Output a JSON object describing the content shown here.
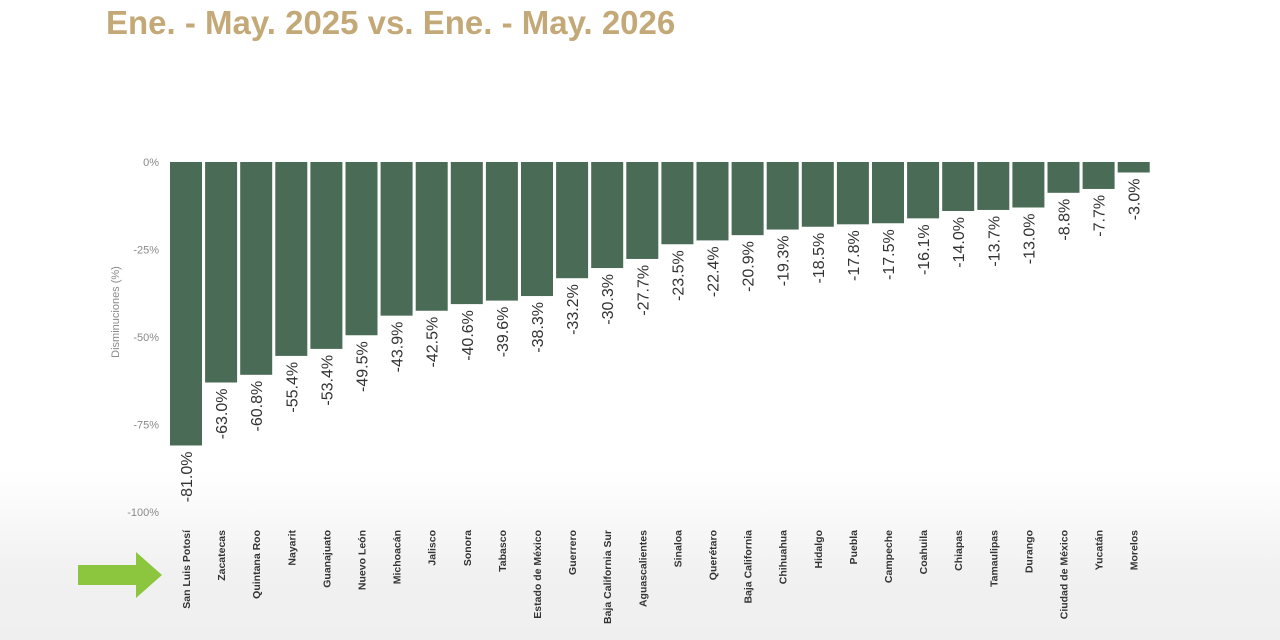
{
  "title": "Ene. - May. 2025 vs. Ene. - May. 2026",
  "chart_data": {
    "type": "bar",
    "ylabel": "Disminuciones (%)",
    "ylim": [
      -100,
      0
    ],
    "yticks": [
      0,
      -25,
      -50,
      -75,
      -100
    ],
    "ytick_labels": [
      "0%",
      "-25%",
      "-50%",
      "-75%",
      "-100%"
    ],
    "categories": [
      "San Luis Potosí",
      "Zacatecas",
      "Quintana Roo",
      "Nayarit",
      "Guanajuato",
      "Nuevo León",
      "Michoacán",
      "Jalisco",
      "Sonora",
      "Tabasco",
      "Estado de México",
      "Guerrero",
      "Baja California Sur",
      "Aguascalientes",
      "Sinaloa",
      "Querétaro",
      "Baja California",
      "Chihuahua",
      "Hidalgo",
      "Puebla",
      "Campeche",
      "Coahuila",
      "Chiapas",
      "Tamaulipas",
      "Durango",
      "Ciudad de México",
      "Yucatán",
      "Morelos"
    ],
    "values": [
      -81.0,
      -63.0,
      -60.8,
      -55.4,
      -53.4,
      -49.5,
      -43.9,
      -42.5,
      -40.6,
      -39.6,
      -38.3,
      -33.2,
      -30.3,
      -27.7,
      -23.5,
      -22.4,
      -20.9,
      -19.3,
      -18.5,
      -17.8,
      -17.5,
      -16.1,
      -14.0,
      -13.7,
      -13.0,
      -8.8,
      -7.7,
      -3.0
    ],
    "data_labels": [
      "-81.0%",
      "-63.0%",
      "-60.8%",
      "-55.4%",
      "-53.4%",
      "-49.5%",
      "-43.9%",
      "-42.5%",
      "-40.6%",
      "-39.6%",
      "-38.3%",
      "-33.2%",
      "-30.3%",
      "-27.7%",
      "-23.5%",
      "-22.4%",
      "-20.9%",
      "-19.3%",
      "-18.5%",
      "-17.8%",
      "-17.5%",
      "-16.1%",
      "-14.0%",
      "-13.7%",
      "-13.0%",
      "-8.8%",
      "-7.7%",
      "-3.0%"
    ],
    "highlighted_category": "San Luis Potosí",
    "grid": false,
    "legend": "none",
    "colors": {
      "bar": "#4a6b56",
      "title": "#c3a977",
      "arrow": "#8cc63f",
      "axis_text": "#8a8a8a",
      "label_text": "#333333"
    }
  }
}
